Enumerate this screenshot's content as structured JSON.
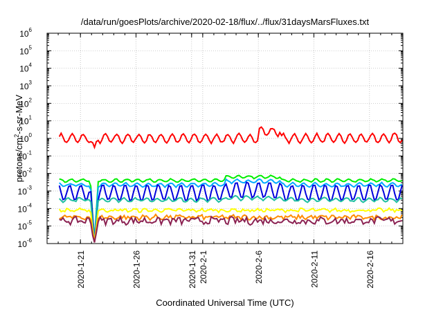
{
  "chart_data": {
    "type": "line",
    "title": "/data/run/goesPlots/archive/2020-02-18/flux/../flux/31daysMarsFluxes.txt",
    "xlabel": "Coordinated Universal Time (UTC)",
    "ylabel": "protons/cm2-s-sr-MeV",
    "ylabel_parts": [
      "protons/cm",
      "2",
      "-s-sr-MeV"
    ],
    "y_scale": "log",
    "ylim": [
      -6,
      6
    ],
    "y_ticks": [
      {
        "base": "10",
        "exp": "-6"
      },
      {
        "base": "10",
        "exp": "-5"
      },
      {
        "base": "10",
        "exp": "-4"
      },
      {
        "base": "10",
        "exp": "-3"
      },
      {
        "base": "10",
        "exp": "-2"
      },
      {
        "base": "10",
        "exp": "-1"
      },
      {
        "base": "10",
        "exp": "0"
      },
      {
        "base": "10",
        "exp": "1"
      },
      {
        "base": "10",
        "exp": "2"
      },
      {
        "base": "10",
        "exp": "3"
      },
      {
        "base": "10",
        "exp": "4"
      },
      {
        "base": "10",
        "exp": "5"
      },
      {
        "base": "10",
        "exp": "6"
      }
    ],
    "x_range": [
      "2020-01-18",
      "2020-02-19"
    ],
    "x_ticks": [
      {
        "date": "2020-01-21",
        "lines": [
          "2020-1-21"
        ]
      },
      {
        "date": "2020-01-26",
        "lines": [
          "2020-1-26"
        ]
      },
      {
        "date": "2020-01-31",
        "lines": [
          "2020-1-31"
        ]
      },
      {
        "date": "2020-02-01",
        "lines": [
          "2020-2-1"
        ]
      },
      {
        "date": "2020-02-06",
        "lines": [
          "2020-2-6"
        ]
      },
      {
        "date": "2020-02-11",
        "lines": [
          "2020-2-11"
        ]
      },
      {
        "date": "2020-02-16",
        "lines": [
          "2020-2-16"
        ]
      }
    ],
    "grid": true,
    "legend": "none",
    "series": [
      {
        "color": "#ff0000",
        "log10_level": 0.0,
        "daily_amplitude": 0.25,
        "noise": 0.05,
        "events": [
          {
            "date": "2020-01-22",
            "log10_value": -0.55
          },
          {
            "date": "2020-02-07",
            "log10_value": 0.55
          },
          {
            "date": "2020-02-18",
            "log10_value": 0.3
          }
        ],
        "elevated_period": [
          "2020-02-06",
          "2020-02-08",
          0.4
        ]
      },
      {
        "color": "#00ee00",
        "log10_level": -2.4,
        "daily_amplitude": 0.08,
        "noise": 0.03,
        "events": [
          {
            "date": "2020-01-22",
            "log10_value": -6.0
          }
        ],
        "elevated_period": [
          "2020-02-03",
          "2020-02-08",
          0.2
        ]
      },
      {
        "color": "#00aaff",
        "log10_level": -2.65,
        "daily_amplitude": 0.1,
        "noise": 0.04,
        "events": [
          {
            "date": "2020-01-22",
            "log10_value": -6.0
          }
        ],
        "elevated_period": [
          "2020-02-03",
          "2020-02-08",
          0.2
        ]
      },
      {
        "color": "#0000dd",
        "log10_level": -3.1,
        "daily_amplitude": 0.45,
        "noise": 0.05,
        "events": [
          {
            "date": "2020-01-22",
            "log10_value": -6.0
          }
        ],
        "elevated_period": [
          "2020-02-03",
          "2020-02-08",
          0.15
        ]
      },
      {
        "color": "#20c0a0",
        "log10_level": -3.5,
        "daily_amplitude": 0.1,
        "noise": 0.05,
        "events": [
          {
            "date": "2020-01-22",
            "log10_value": -6.0
          }
        ],
        "elevated_period": [
          "2020-02-03",
          "2020-02-08",
          0.1
        ]
      },
      {
        "color": "#ffff00",
        "log10_level": -4.1,
        "daily_amplitude": 0.05,
        "noise": 0.08,
        "events": [
          {
            "date": "2020-01-22",
            "log10_value": -6.0
          }
        ]
      },
      {
        "color": "#ff8c00",
        "log10_level": -4.5,
        "daily_amplitude": 0.05,
        "noise": 0.12,
        "events": [
          {
            "date": "2020-01-22",
            "log10_value": -6.0
          }
        ]
      },
      {
        "color": "#8b2252",
        "log10_level": -4.7,
        "daily_amplitude": 0.05,
        "noise": 0.2,
        "events": [
          {
            "date": "2020-01-22",
            "log10_value": -6.0
          }
        ]
      }
    ]
  }
}
